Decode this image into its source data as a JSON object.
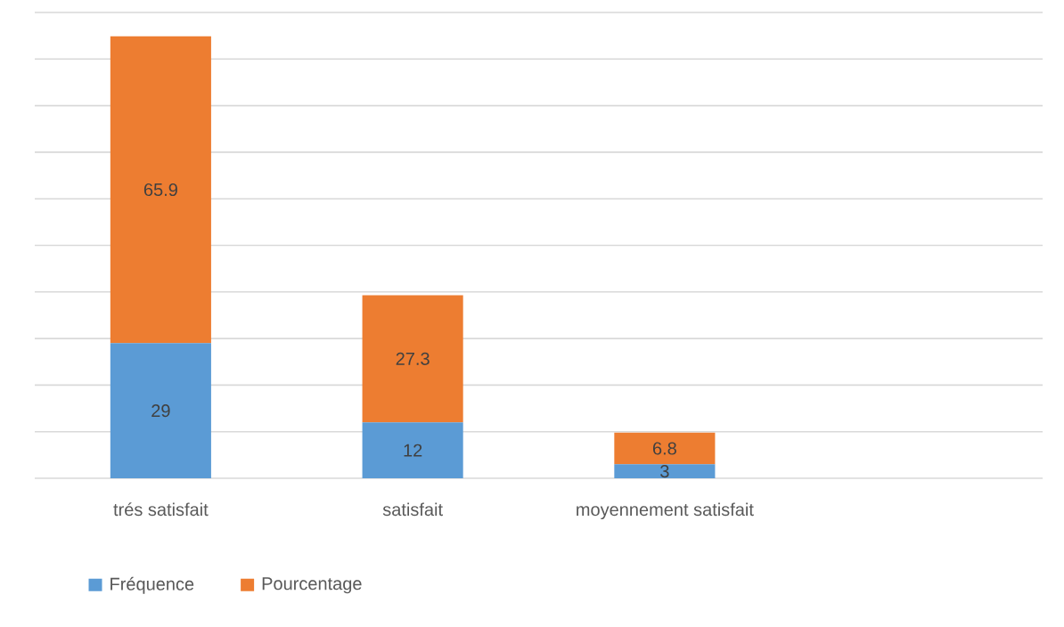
{
  "chart_data": {
    "type": "bar",
    "stacked": true,
    "categories": [
      "trés satisfait",
      "satisfait",
      "moyennement satisfait",
      null
    ],
    "series": [
      {
        "name": "Fréquence",
        "color": "#5b9bd5",
        "values": [
          29,
          12,
          3,
          null
        ]
      },
      {
        "name": "Pourcentage",
        "color": "#ed7d31",
        "values": [
          65.9,
          27.3,
          6.8,
          null
        ]
      }
    ],
    "ylim": [
      0,
      100
    ],
    "yticks": [
      {
        "value": 0,
        "label": null
      },
      {
        "value": 10,
        "label": null
      },
      {
        "value": 20,
        "label": null
      },
      {
        "value": 30,
        "label": null
      },
      {
        "value": 40,
        "label": null
      },
      {
        "value": 50,
        "label": null
      },
      {
        "value": 60,
        "label": null
      },
      {
        "value": 70,
        "label": null
      },
      {
        "value": 80,
        "label": null
      },
      {
        "value": 90,
        "label": null
      },
      {
        "value": 100,
        "label": null
      }
    ],
    "tick_labels": "x",
    "grid": "y",
    "legend": "bottom",
    "data_labels": true
  }
}
